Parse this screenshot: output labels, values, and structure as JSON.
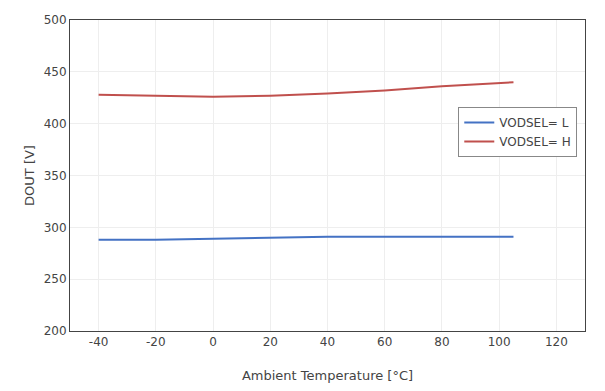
{
  "chart_data": {
    "type": "line",
    "x_label": "Ambient Temperature [°C]",
    "y_label": "DOUT [V]",
    "series": [
      {
        "name": "VODSEL= L",
        "color": "#4472C4",
        "x": [
          -40,
          -20,
          0,
          20,
          40,
          60,
          80,
          105
        ],
        "values": [
          288,
          288,
          289,
          290,
          291,
          291,
          291,
          291
        ]
      },
      {
        "name": "VODSEL= H",
        "color": "#C0504D",
        "x": [
          -40,
          -20,
          0,
          20,
          40,
          60,
          80,
          105
        ],
        "values": [
          428,
          427,
          426,
          427,
          429,
          432,
          436,
          440
        ]
      }
    ],
    "xlim": [
      -50,
      130
    ],
    "ylim": [
      200,
      500
    ],
    "xticks": [
      -40,
      -20,
      0,
      20,
      40,
      60,
      80,
      100,
      120
    ],
    "yticks": [
      200,
      250,
      300,
      350,
      400,
      450,
      500
    ],
    "grid": true,
    "legend": "upper right"
  }
}
